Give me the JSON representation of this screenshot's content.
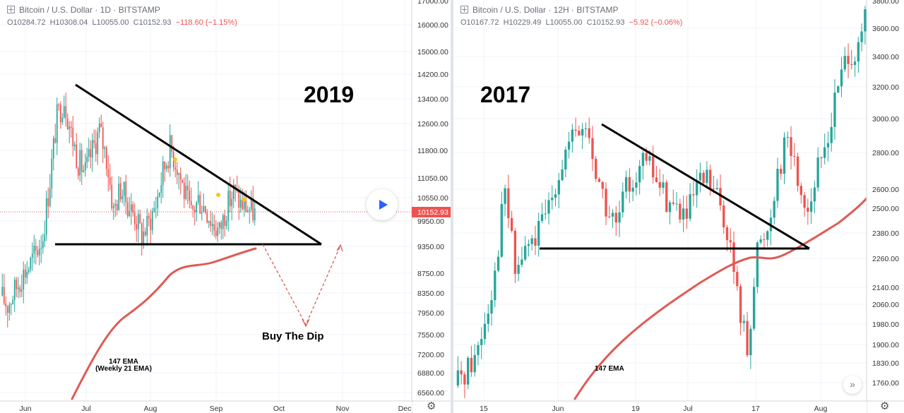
{
  "chart_data": [
    {
      "type": "candlestick",
      "header": "Bitcoin / U.S. Dollar · 1D · BITSTAMP",
      "ohlc": {
        "open": "O10284.72",
        "high": "H10308.04",
        "low": "L10055.00",
        "close": "C10152.93",
        "change": "−118.60 (−1.15%)"
      },
      "overlay_label": "2019",
      "y_ticks": [
        "16000.00",
        "15000.00",
        "14200.00",
        "13400.00",
        "12600.00",
        "11800.00",
        "11050.00",
        "10550.00",
        "9950.00",
        "9350.00",
        "8750.00",
        "8350.00",
        "7950.00",
        "7550.00",
        "7200.00",
        "6880.00",
        "6560.00"
      ],
      "y_top_partial": "17000.00",
      "last_price": "10152.93",
      "x_ticks": [
        "Jun",
        "Jul",
        "Aug",
        "Sep",
        "Oct",
        "Nov",
        "Dec"
      ],
      "annotations": {
        "text_main": "Buy The Dip",
        "ema_line1": "147 EMA",
        "ema_line2": "(Weekly 21 EMA)"
      },
      "triangle": {
        "apex_price": 9350,
        "start_high": 13880,
        "support": 9350
      },
      "ylim": [
        6400,
        17000
      ],
      "price_path": [
        8300,
        8100,
        8400,
        8700,
        8900,
        9200,
        9600,
        11000,
        12800,
        13400,
        12300,
        11500,
        11200,
        11800,
        12400,
        11600,
        10200,
        10800,
        10400,
        10100,
        9600,
        9900,
        10400,
        11200,
        11900,
        11400,
        10700,
        10100,
        10500,
        10300,
        9900,
        9700,
        10300,
        10700,
        10400,
        10300,
        10150
      ]
    },
    {
      "type": "candlestick",
      "header": "Bitcoin / U.S. Dollar · 12H · BITSTAMP",
      "ohlc": {
        "open": "O10167.72",
        "high": "H10229.49",
        "low": "L10055.00",
        "close": "C10152.93",
        "change": "−5.92 (−0.06%)"
      },
      "overlay_label": "2017",
      "y_ticks": [
        "3600.00",
        "3400.00",
        "3200.00",
        "3000.00",
        "2800.00",
        "2600.00",
        "2500.00",
        "2380.00",
        "2260.00",
        "2140.00",
        "2060.00",
        "1980.00",
        "1900.00",
        "1830.00",
        "1760.00"
      ],
      "y_top_partial": "3800.00",
      "x_ticks": [
        "15",
        "Jun",
        "19",
        "Jul",
        "17",
        "Aug"
      ],
      "annotations": {
        "ema_label": "147 EMA"
      },
      "triangle": {
        "apex_price": 2300,
        "start_high": 2960,
        "support": 2300
      },
      "ylim": [
        1720,
        3820
      ],
      "price_path": [
        1750,
        1800,
        1850,
        2000,
        2200,
        2600,
        2200,
        2300,
        2350,
        2450,
        2650,
        2800,
        2900,
        2950,
        2700,
        2500,
        2400,
        2600,
        2700,
        2750,
        2650,
        2550,
        2500,
        2450,
        2600,
        2650,
        2550,
        2400,
        2100,
        1880,
        2300,
        2400,
        2700,
        2900,
        2650,
        2500,
        2700,
        2900,
        3200,
        3450,
        3400,
        3800
      ]
    }
  ]
}
